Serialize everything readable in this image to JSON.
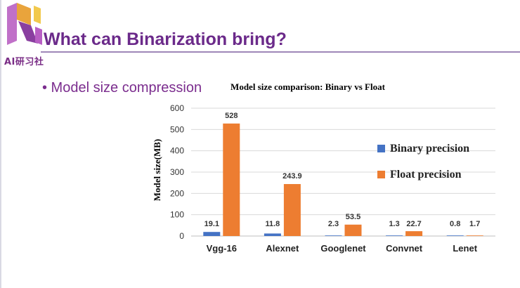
{
  "header": {
    "logo_text": "AI研习社",
    "title": "What can Binarization bring?"
  },
  "bullet": "• Model size compression",
  "colors": {
    "title": "#6b2a8a",
    "binary": "#4472c4",
    "float": "#ed7d31"
  },
  "chart_data": {
    "type": "bar",
    "title": "Model size comparison: Binary vs Float",
    "xlabel": "",
    "ylabel": "Model size(MB)",
    "ylim": [
      0,
      600
    ],
    "yticks": [
      "0",
      "100",
      "200",
      "300",
      "400",
      "500",
      "600"
    ],
    "categories": [
      "Vgg-16",
      "Alexnet",
      "Googlenet",
      "Convnet",
      "Lenet"
    ],
    "series": [
      {
        "name": "Binary precision",
        "values": [
          19.1,
          11.8,
          2.3,
          1.3,
          0.8
        ]
      },
      {
        "name": "Float precision",
        "values": [
          528,
          243.9,
          53.5,
          22.7,
          1.7
        ]
      }
    ],
    "data_labels": [
      [
        "19.1",
        "11.8",
        "2.3",
        "1.3",
        "0.8"
      ],
      [
        "528",
        "243.9",
        "53.5",
        "22.7",
        "1.7"
      ]
    ],
    "grid": true,
    "legend": "right"
  }
}
